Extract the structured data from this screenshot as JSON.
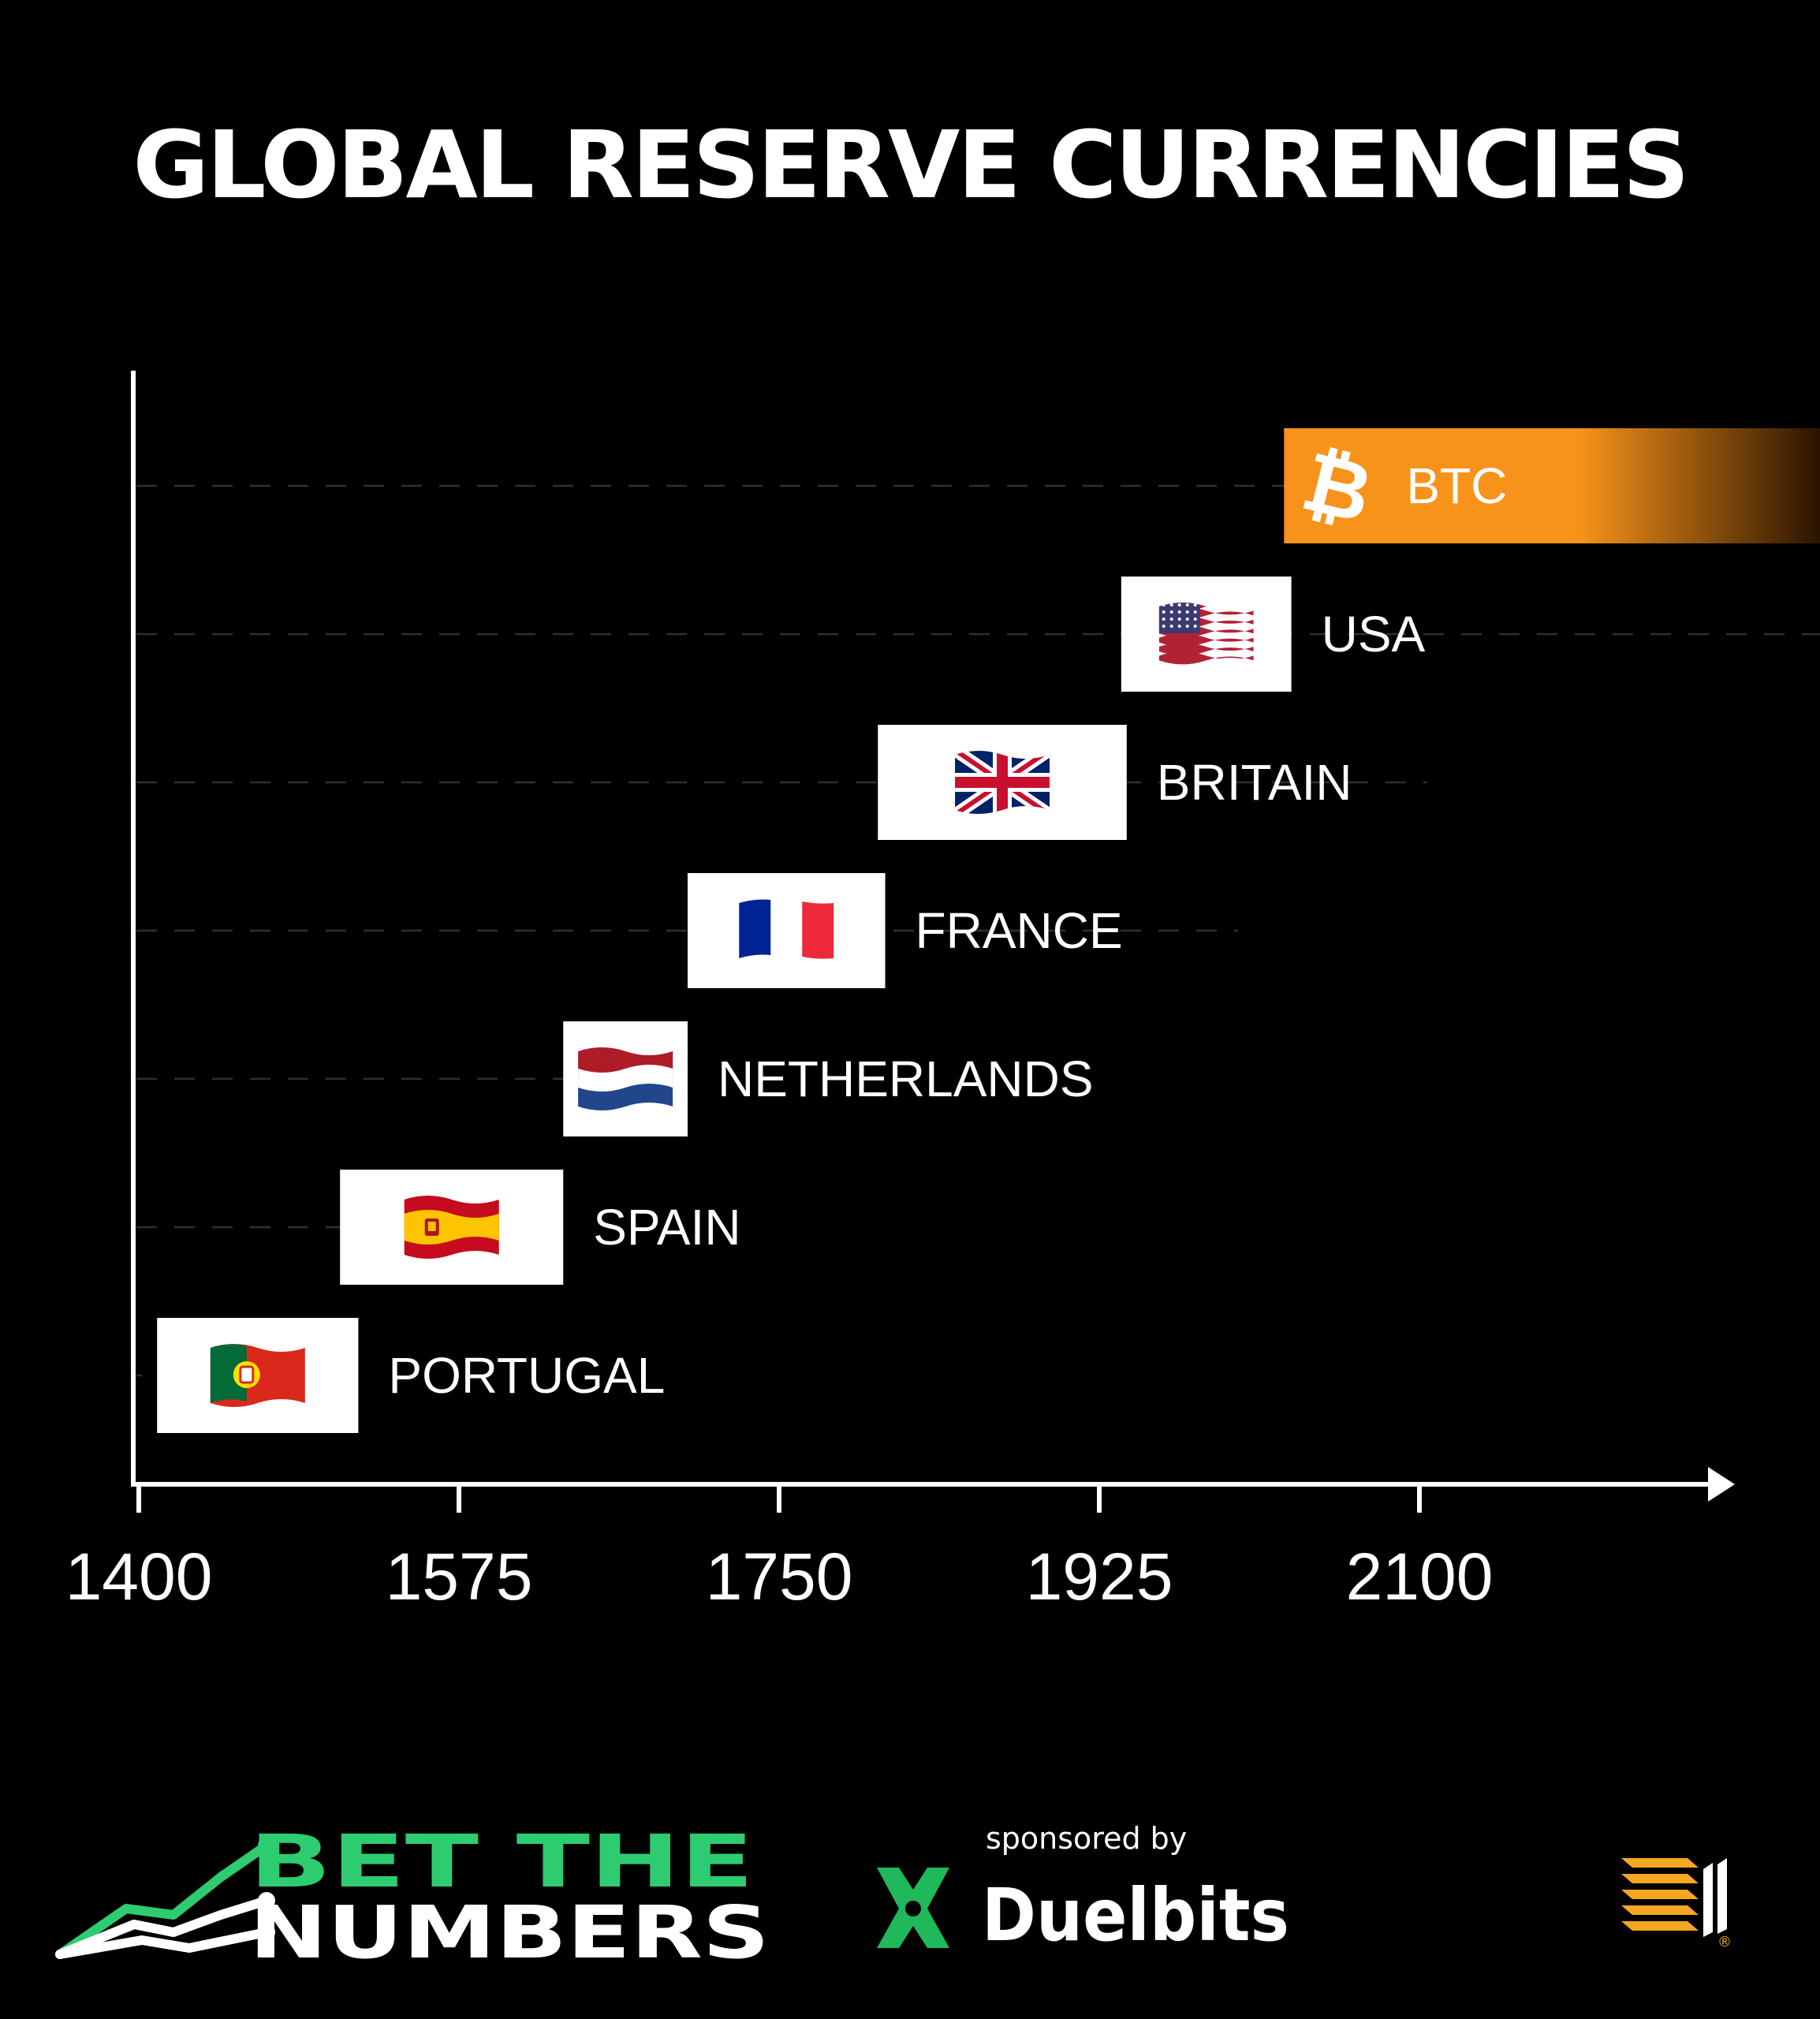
{
  "chart_data": {
    "type": "timeline",
    "title": "GLOBAL RESERVE CURRENCIES",
    "xlim": [
      1400,
      2268
    ],
    "xticks": [
      1400,
      1575,
      1750,
      1925,
      2100
    ],
    "xtick_labels": [
      "1400",
      "1575",
      "1750",
      "1925",
      "2100"
    ],
    "series": [
      {
        "name": "PORTUGAL",
        "start": 1410,
        "end": 1520,
        "flag": "portugal-flag",
        "color": "#ffffff"
      },
      {
        "name": "SPAIN",
        "start": 1510,
        "end": 1632,
        "flag": "spain-flag",
        "color": "#ffffff"
      },
      {
        "name": "NETHERLANDS",
        "start": 1632,
        "end": 1700,
        "flag": "netherlands-flag",
        "color": "#ffffff"
      },
      {
        "name": "FRANCE",
        "start": 1700,
        "end": 1808,
        "flag": "france-flag",
        "color": "#ffffff"
      },
      {
        "name": "BRITAIN",
        "start": 1804,
        "end": 1940,
        "flag": "uk-flag",
        "color": "#ffffff"
      },
      {
        "name": "USA",
        "start": 1937,
        "end": 2030,
        "flag": "usa-flag",
        "color": "#ffffff"
      },
      {
        "name": "BTC",
        "start": 2026,
        "end": 2318,
        "flag": "bitcoin-icon",
        "color": "#f7931a"
      }
    ]
  },
  "branding": {
    "logo_line1": "BET THE",
    "logo_line2": "NUMBERS",
    "sponsored_by": "sponsored by",
    "sponsor_name": "Duelbits",
    "registered_mark": "®"
  },
  "colors": {
    "background": "#000000",
    "btc_orange": "#f7931a",
    "brand_green": "#2ecc71",
    "duelbits_green": "#1fb85a",
    "tc_orange": "#f5a623"
  }
}
